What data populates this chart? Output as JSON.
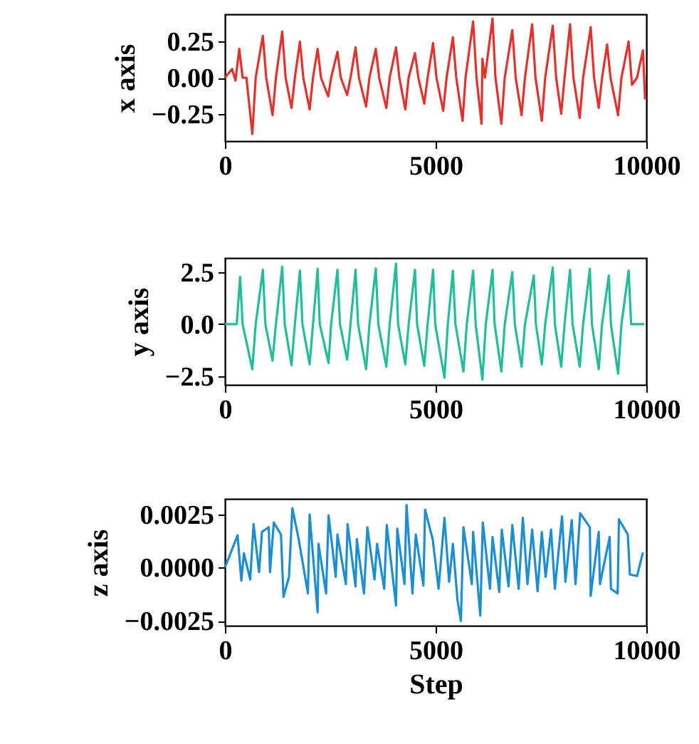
{
  "chart_data": [
    {
      "type": "line",
      "ylabel": "x axis",
      "xlim": [
        0,
        10000
      ],
      "xticks": [
        0,
        5000,
        10000
      ],
      "ylim": [
        -0.44,
        0.44
      ],
      "yticks": [
        {
          "value": 0.25,
          "label": "0.25"
        },
        {
          "value": 0,
          "label": "0.00"
        },
        {
          "value": -0.25,
          "label": "−0.25"
        }
      ],
      "x": [
        0,
        170,
        250,
        340,
        420,
        510,
        650,
        730,
        900,
        980,
        1130,
        1210,
        1360,
        1440,
        1580,
        1660,
        1780,
        1860,
        2010,
        2090,
        2200,
        2280,
        2450,
        2520,
        2670,
        2750,
        2900,
        2980,
        3100,
        3180,
        3350,
        3430,
        3580,
        3660,
        3830,
        3910,
        4060,
        4140,
        4280,
        4360,
        4510,
        4590,
        4730,
        4810,
        4940,
        5020,
        5180,
        5260,
        5410,
        5490,
        5640,
        5710,
        5890,
        5970,
        6090,
        6110,
        6170,
        6350,
        6420,
        6560,
        6640,
        6820,
        6900,
        7040,
        7120,
        7290,
        7370,
        7520,
        7600,
        7780,
        7860,
        7980,
        8060,
        8190,
        8270,
        8420,
        8500,
        8680,
        8760,
        8870,
        8950,
        9070,
        9150,
        9330,
        9410,
        9580,
        9660,
        9780,
        9920,
        9970
      ],
      "series": [
        {
          "color": "#e8302a",
          "values": [
            0,
            0.06,
            -0.02,
            0.2,
            0,
            0,
            -0.39,
            0,
            0.29,
            0,
            -0.26,
            0,
            0.32,
            0,
            -0.21,
            0,
            0.25,
            0,
            -0.22,
            0,
            0.2,
            0,
            -0.13,
            0,
            0.18,
            0,
            -0.12,
            0,
            0.21,
            0,
            -0.2,
            0,
            0.2,
            0,
            -0.21,
            0,
            0.21,
            0,
            -0.22,
            0,
            0.17,
            0,
            -0.18,
            0,
            0.24,
            0,
            -0.23,
            0,
            0.28,
            0,
            -0.3,
            0,
            0.39,
            0,
            -0.32,
            0.13,
            0,
            0.41,
            0,
            -0.32,
            0,
            0.33,
            0,
            -0.26,
            0,
            0.37,
            0,
            -0.3,
            0,
            0.36,
            0,
            -0.25,
            0,
            0.37,
            0,
            -0.28,
            0,
            0.35,
            0,
            -0.21,
            0,
            0.23,
            0,
            -0.26,
            0,
            0.25,
            -0.05,
            0,
            0.19,
            -0.15
          ]
        }
      ]
    },
    {
      "type": "line",
      "ylabel": "y axis",
      "xlim": [
        0,
        10000
      ],
      "xticks": [
        0,
        5000,
        10000
      ],
      "ylim": [
        -2.91,
        3.18
      ],
      "yticks": [
        {
          "value": 2.5,
          "label": "2.5"
        },
        {
          "value": 0,
          "label": "0.0"
        },
        {
          "value": -2.5,
          "label": "−2.5"
        }
      ],
      "x": [
        0,
        280,
        360,
        420,
        650,
        730,
        900,
        960,
        1130,
        1210,
        1360,
        1420,
        1580,
        1660,
        1780,
        1840,
        2010,
        2090,
        2200,
        2250,
        2460,
        2520,
        2670,
        2730,
        2900,
        2980,
        3100,
        3160,
        3350,
        3430,
        3580,
        3640,
        3830,
        3910,
        4060,
        4110,
        4280,
        4360,
        4510,
        4560,
        4730,
        4810,
        4940,
        4990,
        5210,
        5290,
        5410,
        5470,
        5660,
        5740,
        5890,
        5950,
        6110,
        6190,
        6350,
        6400,
        6560,
        6640,
        6820,
        6880,
        7040,
        7120,
        7330,
        7380,
        7520,
        7600,
        7780,
        7830,
        7980,
        8060,
        8190,
        8250,
        8420,
        8500,
        8660,
        8710,
        8870,
        8950,
        9110,
        9160,
        9330,
        9410,
        9580,
        9640,
        9950
      ],
      "series": [
        {
          "color": "#1fbf9a",
          "values": [
            0,
            0,
            2.27,
            0,
            -2.16,
            0,
            2.61,
            0,
            -1.75,
            0,
            2.77,
            0,
            -1.97,
            0,
            2.57,
            0,
            -1.93,
            0,
            2.66,
            0,
            -1.86,
            0,
            2.61,
            0,
            -1.7,
            0,
            2.61,
            0,
            -2.16,
            0,
            2.68,
            0,
            -2.04,
            0,
            2.91,
            0,
            -1.93,
            0,
            2.61,
            0,
            -2.0,
            0,
            2.61,
            0,
            -2.57,
            0,
            2.57,
            0,
            -2.27,
            0,
            2.57,
            0,
            -2.66,
            0,
            2.61,
            0,
            -2.27,
            0,
            2.5,
            0,
            -2.04,
            0,
            2.34,
            0,
            -1.93,
            0,
            2.72,
            0,
            -2.04,
            0,
            2.61,
            0,
            -2.04,
            0,
            2.66,
            0,
            -2.16,
            0,
            2.34,
            0,
            -2.38,
            0,
            2.57,
            0,
            0
          ]
        }
      ]
    },
    {
      "type": "line",
      "ylabel": "z axis",
      "xlabel": "Step",
      "xlim": [
        0,
        10000
      ],
      "xticks": [
        0,
        5000,
        10000
      ],
      "ylim": [
        -0.00273,
        0.00322
      ],
      "yticks": [
        {
          "value": 0.0025,
          "label": "0.0025"
        },
        {
          "value": 0,
          "label": "0.0000"
        },
        {
          "value": -0.0025,
          "label": "−0.0025"
        }
      ],
      "x": [
        0,
        300,
        390,
        450,
        600,
        680,
        810,
        880,
        1040,
        1070,
        1160,
        1330,
        1390,
        1520,
        1600,
        1750,
        1970,
        2010,
        2200,
        2220,
        2400,
        2460,
        2630,
        2670,
        2870,
        2910,
        3100,
        3130,
        3300,
        3380,
        3550,
        3610,
        3780,
        3840,
        4060,
        4090,
        4260,
        4310,
        4450,
        4530,
        4710,
        4750,
        4930,
        5070,
        5210,
        5320,
        5410,
        5520,
        5600,
        5660,
        5860,
        5890,
        6060,
        6120,
        6290,
        6350,
        6510,
        6570,
        6730,
        6820,
        6970,
        7070,
        7180,
        7290,
        7420,
        7520,
        7610,
        7740,
        7830,
        8000,
        8080,
        8230,
        8320,
        8430,
        8660,
        8680,
        8870,
        8900,
        9130,
        9160,
        9320,
        9350,
        9560,
        9610,
        9780,
        9920
      ],
      "series": [
        {
          "color": "#1a8fd4",
          "values": [
            0,
            0.00151,
            -0.00062,
            0.00067,
            -0.00056,
            0.00204,
            -0.00022,
            0.00167,
            0.00189,
            -0.00022,
            0.00211,
            0.00155,
            -0.00138,
            -0.00044,
            0.00278,
            0.00133,
            -0.00122,
            0.00249,
            -0.00211,
            0.00111,
            -0.00122,
            0.00244,
            -0.00044,
            0.00155,
            -0.00078,
            0.00204,
            -0.00089,
            0.00133,
            -0.00122,
            0.00189,
            -0.00056,
            0.00111,
            -0.001,
            0.002,
            -0.00178,
            0.00182,
            -0.00078,
            0.00293,
            -0.00122,
            0.00155,
            -0.00084,
            0.00271,
            0.00133,
            -0.001,
            0.00233,
            -0.00067,
            0.00111,
            -0.00155,
            -0.00251,
            0.00189,
            -0.00078,
            0.00167,
            -0.00226,
            0.00211,
            -0.001,
            0.00144,
            -0.00115,
            0.00178,
            -0.00089,
            0.002,
            -0.001,
            0.00233,
            -0.00078,
            0.00178,
            -0.00111,
            0.00167,
            -0.00044,
            0.00178,
            -0.001,
            0.0024,
            -0.00067,
            0.00222,
            -0.00078,
            0.00255,
            0.00189,
            -0.00133,
            0.00167,
            -0.00078,
            0.00144,
            -0.001,
            -0.00122,
            0.00226,
            0.00155,
            -0.00033,
            -0.0004,
            0.00071
          ]
        }
      ]
    }
  ]
}
